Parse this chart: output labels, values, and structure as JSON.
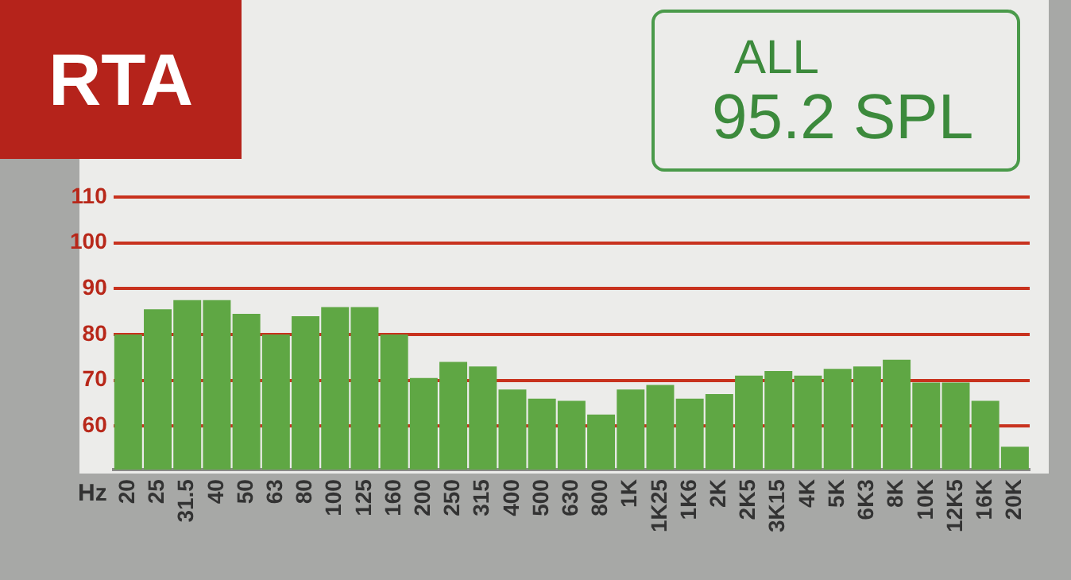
{
  "chart_data": {
    "type": "bar",
    "title": "RTA",
    "xlabel": "Hz",
    "annotations": [
      "ALL",
      "95.2 SPL"
    ],
    "categories": [
      "20",
      "25",
      "31.5",
      "40",
      "50",
      "63",
      "80",
      "100",
      "125",
      "160",
      "200",
      "250",
      "315",
      "400",
      "500",
      "630",
      "800",
      "1K",
      "1K25",
      "1K6",
      "2K",
      "2K5",
      "3K15",
      "4K",
      "5K",
      "6K3",
      "8K",
      "10K",
      "12K5",
      "16K",
      "20K"
    ],
    "values": [
      80,
      85.5,
      87.5,
      87.5,
      84.5,
      80,
      84,
      86,
      86,
      80,
      70.5,
      74,
      73,
      68,
      66,
      65.5,
      62.5,
      68,
      69,
      66,
      67,
      71,
      72,
      71,
      72.5,
      73,
      74.5,
      69.5,
      69.5,
      65.5,
      55.5
    ],
    "color": "#5fa744",
    "ylim": [
      50.5,
      110
    ],
    "yticks": [
      60,
      70,
      80,
      90,
      100,
      110
    ],
    "grid": "y",
    "legend": false
  }
}
